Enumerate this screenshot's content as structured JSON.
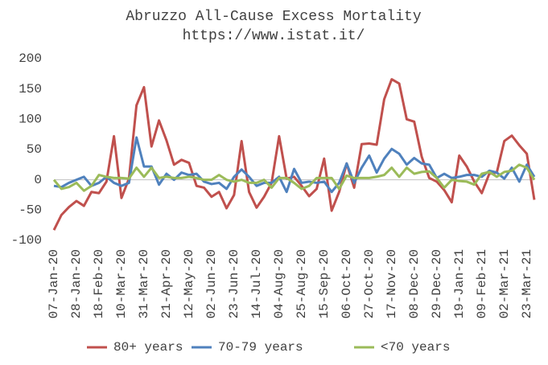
{
  "chart_data": {
    "type": "line",
    "title": "Abruzzo All-Cause Excess Mortality",
    "subtitle": "https://www.istat.it/",
    "categories": [
      "07-Jan-20",
      null,
      null,
      "28-Jan-20",
      null,
      null,
      "18-Feb-20",
      null,
      null,
      "10-Mar-20",
      null,
      null,
      "31-Mar-20",
      null,
      null,
      "21-Apr-20",
      null,
      null,
      "12-May-20",
      null,
      null,
      "02-Jun-20",
      null,
      null,
      "23-Jun-20",
      null,
      null,
      "14-Jul-20",
      null,
      null,
      "04-Aug-20",
      null,
      null,
      "25-Aug-20",
      null,
      null,
      "15-Sep-20",
      null,
      null,
      "06-Oct-20",
      null,
      null,
      "27-Oct-20",
      null,
      null,
      "17-Nov-20",
      null,
      null,
      "08-Dec-20",
      null,
      null,
      "29-Dec-20",
      null,
      null,
      "19-Jan-21",
      null,
      null,
      "09-Feb-21",
      null,
      null,
      "02-Mar-21",
      null,
      null,
      "23-Mar-21",
      null
    ],
    "series": [
      {
        "name": "80+ years",
        "color": "#c0504d",
        "values": [
          -83,
          -58,
          -45,
          -35,
          -43,
          -20,
          -22,
          -3,
          72,
          -30,
          2,
          123,
          153,
          55,
          98,
          65,
          25,
          33,
          28,
          -10,
          -13,
          -28,
          -20,
          -47,
          -25,
          64,
          -20,
          -46,
          -28,
          -5,
          72,
          2,
          5,
          -10,
          -27,
          -15,
          35,
          -51,
          -20,
          27,
          -13,
          59,
          60,
          58,
          133,
          166,
          159,
          100,
          96,
          38,
          3,
          -3,
          -17,
          -37,
          40,
          22,
          -3,
          -22,
          10,
          12,
          64,
          73,
          57,
          43,
          -33
        ]
      },
      {
        "name": "70-79 years",
        "color": "#4f81bd",
        "values": [
          -10,
          -12,
          -5,
          0,
          5,
          -10,
          -5,
          5,
          -5,
          -10,
          -5,
          70,
          22,
          22,
          -8,
          10,
          0,
          12,
          8,
          10,
          -3,
          -7,
          -5,
          -15,
          5,
          17,
          5,
          -10,
          -5,
          -5,
          5,
          -20,
          18,
          -5,
          -3,
          -5,
          -3,
          -20,
          -5,
          27,
          -5,
          20,
          40,
          12,
          35,
          51,
          43,
          25,
          36,
          27,
          25,
          3,
          10,
          3,
          5,
          8,
          8,
          5,
          15,
          12,
          2,
          20,
          -3,
          25,
          5
        ]
      },
      {
        "name": "<70 years",
        "color": "#9bbb59",
        "values": [
          0,
          -15,
          -12,
          -5,
          -18,
          -10,
          8,
          5,
          3,
          3,
          2,
          20,
          5,
          20,
          3,
          5,
          3,
          3,
          5,
          3,
          0,
          0,
          8,
          0,
          -3,
          0,
          -5,
          -5,
          0,
          -13,
          3,
          3,
          -5,
          -15,
          -10,
          3,
          3,
          3,
          -15,
          7,
          3,
          3,
          3,
          5,
          8,
          20,
          5,
          20,
          10,
          13,
          14,
          3,
          -13,
          0,
          -2,
          -3,
          -8,
          10,
          13,
          5,
          13,
          15,
          25,
          20,
          0
        ]
      }
    ],
    "ylim": [
      -100,
      200
    ],
    "yticks": [
      -100,
      -50,
      0,
      50,
      100,
      150,
      200
    ],
    "grid": false
  }
}
